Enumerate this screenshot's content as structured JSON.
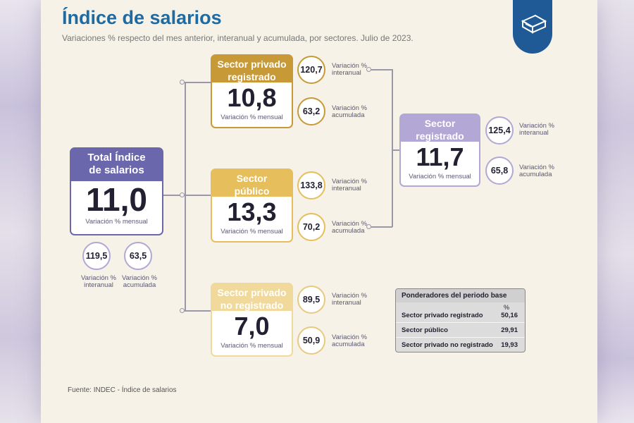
{
  "header": {
    "title": "Índice de salarios",
    "subtitle": "Variaciones % respecto del mes anterior, interanual y acumulada, por sectores. Julio de 2023."
  },
  "total": {
    "label": "Total Índice de salarios",
    "value": "11,0",
    "caption": "Variación % mensual",
    "interanual": "119,5",
    "interanual_label": "Variación % interanual",
    "acumulada": "63,5",
    "acumulada_label": "Variación % acumulada",
    "color": "#6b67ad"
  },
  "sectors": [
    {
      "label": "Sector privado registrado",
      "value": "10,8",
      "caption": "Variación % mensual",
      "interanual": "120,7",
      "interanual_label": "Variación % interanual",
      "acumulada": "63,2",
      "acumulada_label": "Variación % acumulada",
      "color": "#c79a37"
    },
    {
      "label": "Sector público",
      "value": "13,3",
      "caption": "Variación % mensual",
      "interanual": "133,8",
      "interanual_label": "Variación % interanual",
      "acumulada": "70,2",
      "acumulada_label": "Variación % acumulada",
      "color": "#e6be5c"
    },
    {
      "label": "Sector privado no registrado",
      "value": "7,0",
      "caption": "Variación % mensual",
      "interanual": "89,5",
      "interanual_label": "Variación % interanual",
      "acumulada": "50,9",
      "acumulada_label": "Variación % acumulada",
      "color": "#f1d99b"
    }
  ],
  "registrado": {
    "label": "Sector registrado",
    "value": "11,7",
    "caption": "Variación % mensual",
    "interanual": "125,4",
    "interanual_label": "Variación % interanual",
    "acumulada": "65,8",
    "acumulada_label": "Variación % acumulada",
    "color": "#b3a7d5"
  },
  "weights": {
    "title": "Ponderadores del periodo base",
    "unit": "%",
    "rows": [
      {
        "label": "Sector privado registrado",
        "value": "50,16"
      },
      {
        "label": "Sector público",
        "value": "29,91"
      },
      {
        "label": "Sector privado no registrado",
        "value": "19,93"
      }
    ]
  },
  "source": "Fuente: INDEC - Índice de salarios"
}
